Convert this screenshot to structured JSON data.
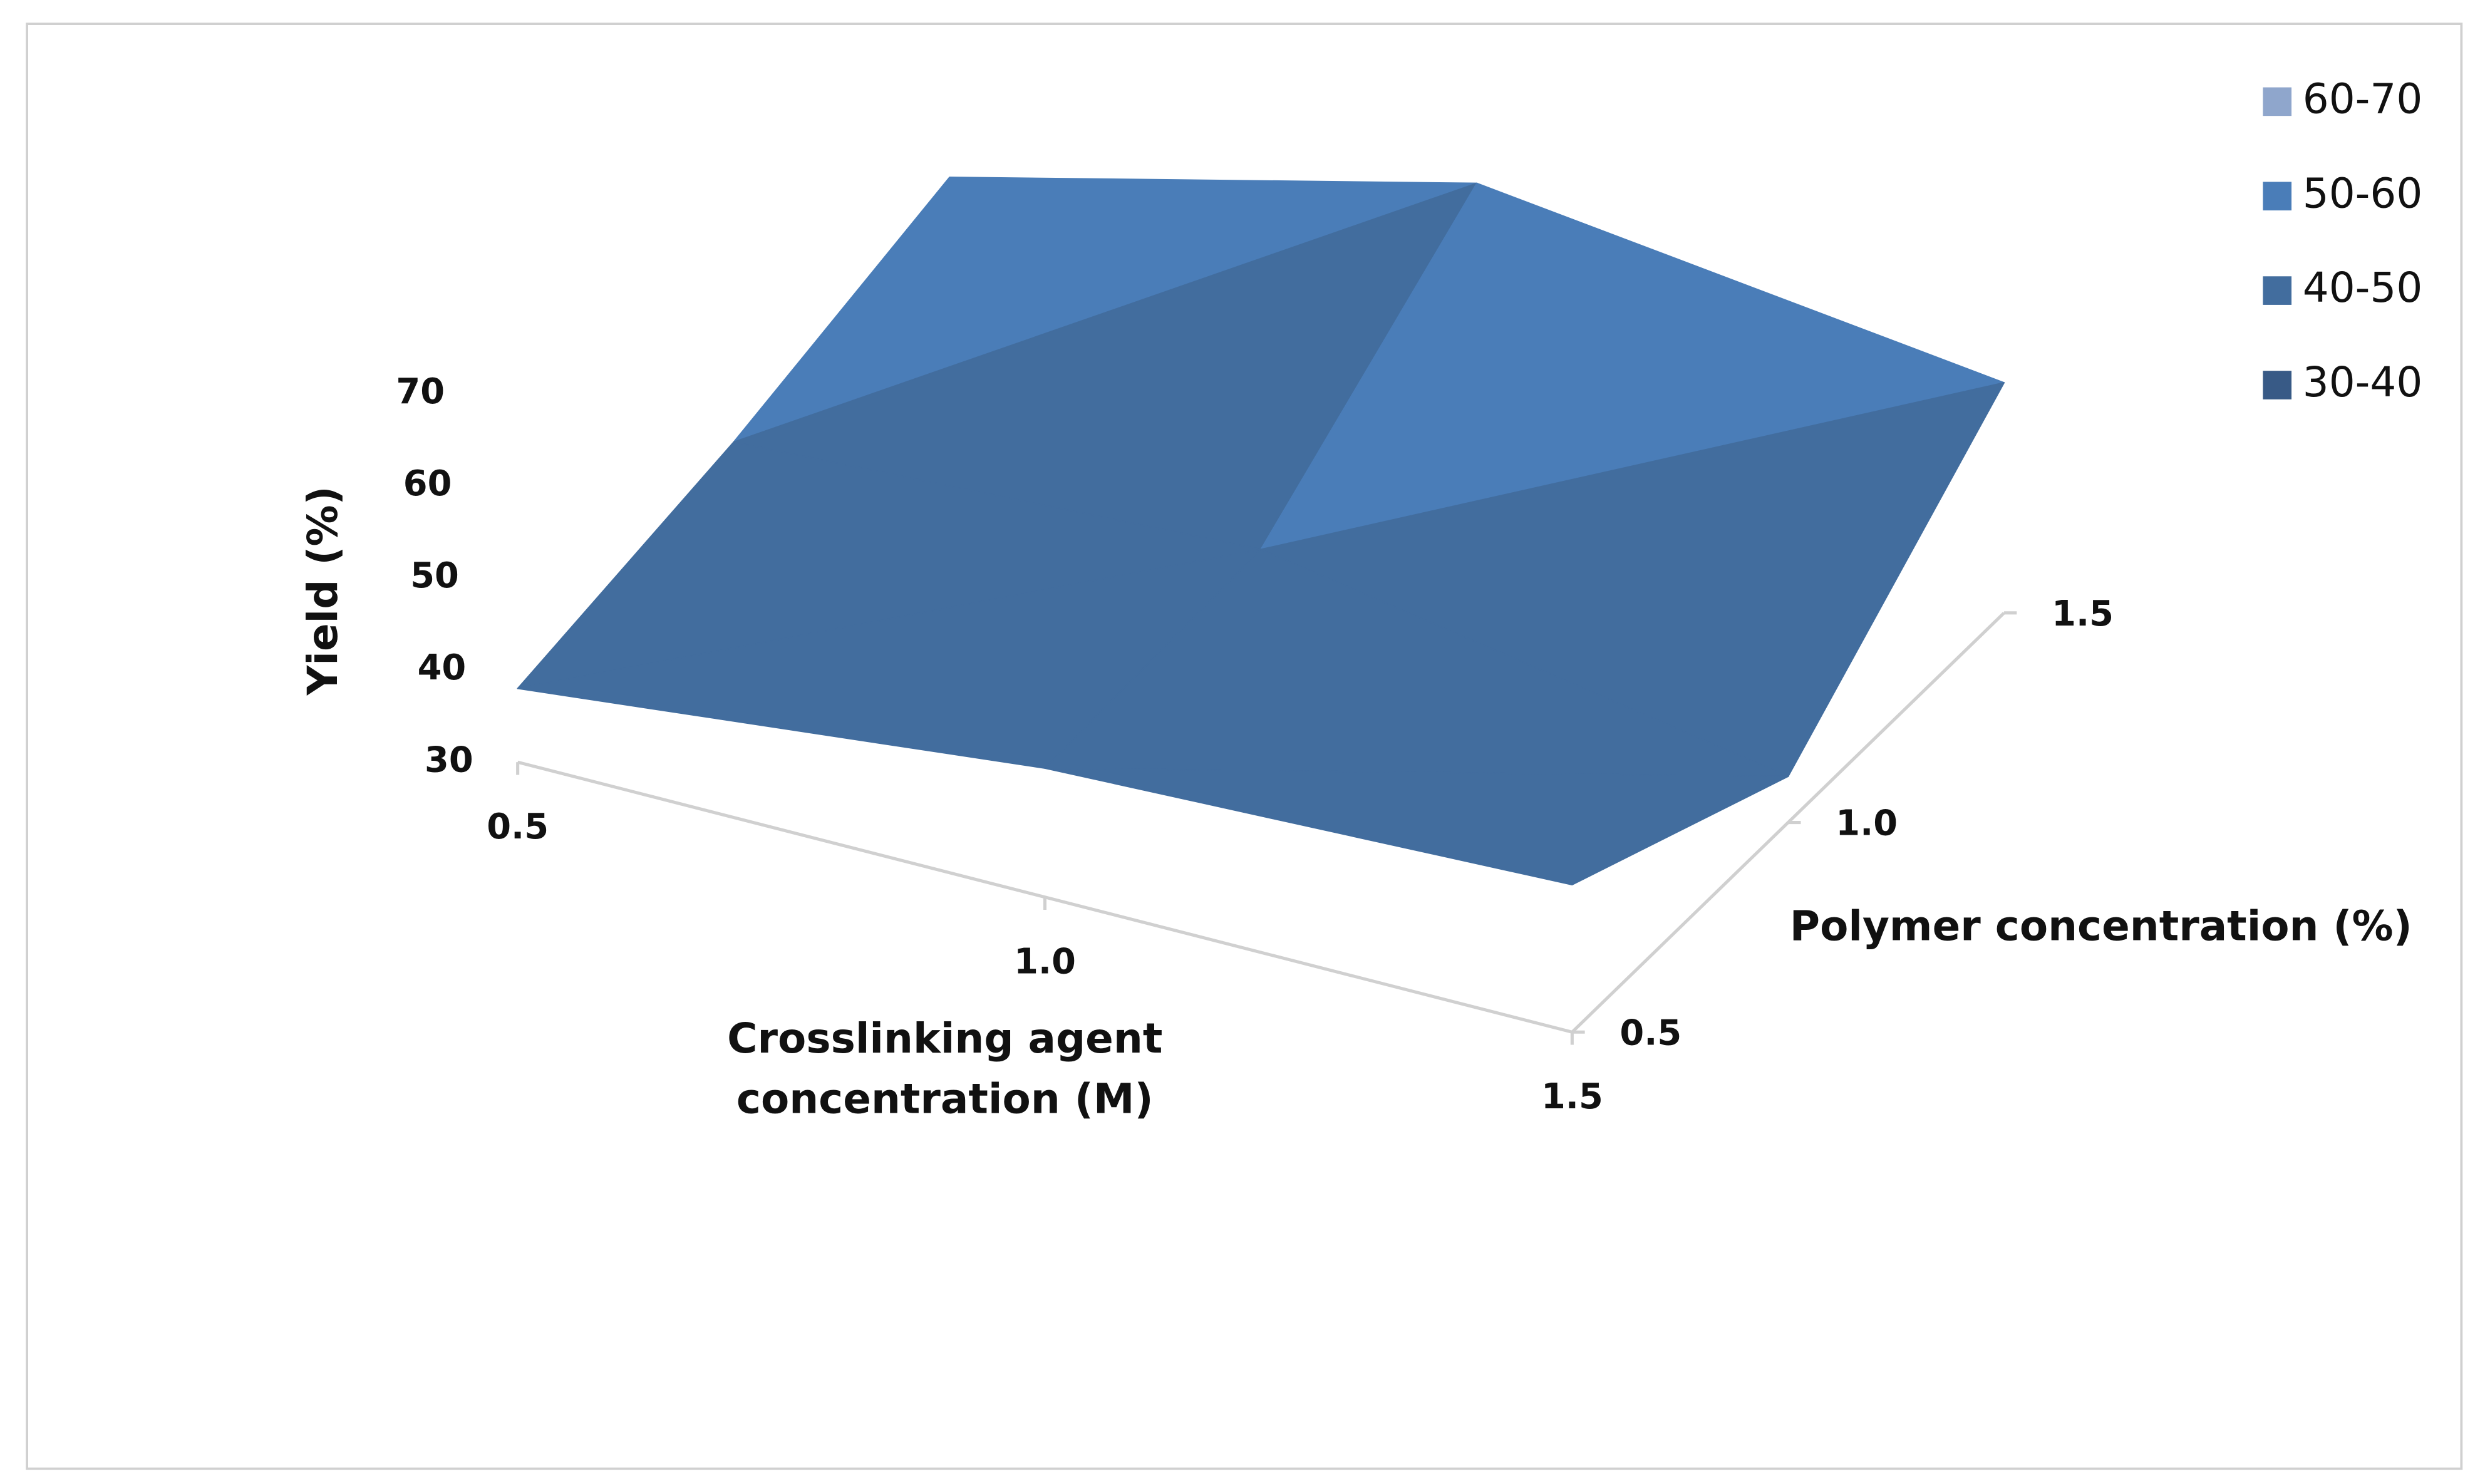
{
  "chart_data": {
    "type": "surface",
    "z_label": "Yield (%)",
    "x_label": "Crosslinking agent concentration (M)",
    "y_label": "Polymer concentration (%)",
    "x_categories": [
      "0.5",
      "1.0",
      "1.5"
    ],
    "y_categories": [
      "0.5",
      "1.0",
      "1.5"
    ],
    "values": [
      [
        38,
        44,
        46
      ],
      [
        42,
        45,
        35
      ],
      [
        48,
        62,
        55
      ]
    ],
    "zlim": [
      30,
      70
    ],
    "zticks": [
      30,
      40,
      50,
      60,
      70
    ],
    "bands": [
      {
        "label": "60-70",
        "min": 60,
        "max": 70,
        "color": "#8fa6cc"
      },
      {
        "label": "50-60",
        "min": 50,
        "max": 60,
        "color": "#4a7db8"
      },
      {
        "label": "40-50",
        "min": 40,
        "max": 50,
        "color": "#426d9e"
      },
      {
        "label": "30-40",
        "min": 30,
        "max": 40,
        "color": "#385a86"
      }
    ],
    "legend": "right"
  }
}
